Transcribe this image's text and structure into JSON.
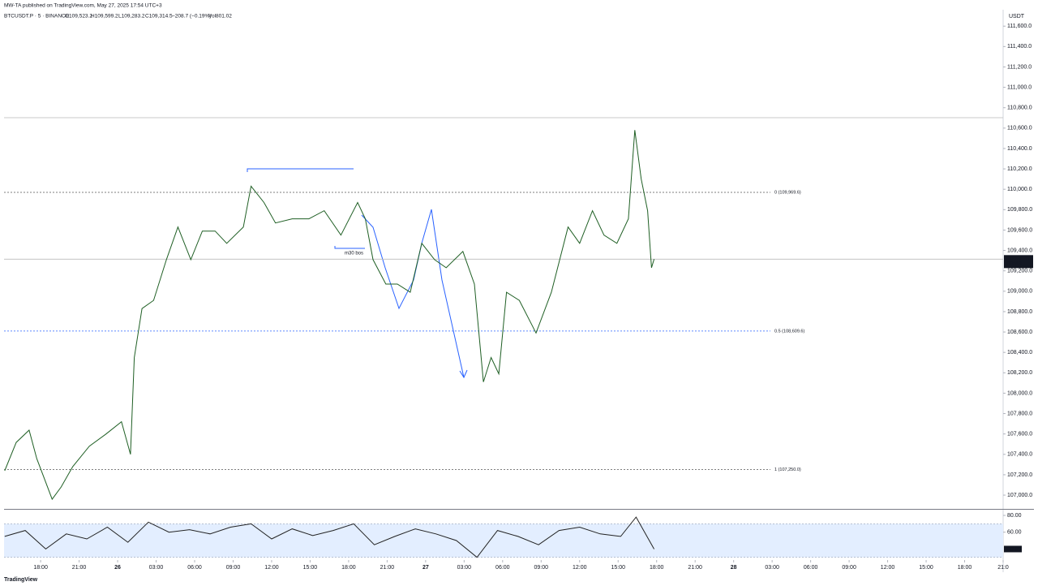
{
  "header": {
    "published": "MW-TA published on TradingView.com, May 27, 2025 17:54 UTC+3",
    "symbol": "BTCUSDT.P · 5 · BINANCE",
    "open": "O109,523.2",
    "high": "H109,599.2",
    "low": "L109,283.2",
    "close": "C109,314.5",
    "change": "−208.7 (−0.19%)",
    "volume": "Vol801.02"
  },
  "footer_brand": "TradingView",
  "chart_data": [
    {
      "type": "line",
      "currency": "USDT",
      "color": "#1f5f24",
      "x": [
        -2.8,
        -1.9,
        -0.9,
        -0.3,
        0.3,
        0.9,
        1.6,
        2.5,
        3.8,
        5.1,
        6.3,
        7.0,
        7.3,
        7.9,
        8.8,
        9.8,
        10.7,
        11.7,
        12.6,
        13.6,
        14.5,
        15.8,
        16.4,
        17.4,
        18.3,
        19.6,
        20.9,
        22.1,
        23.4,
        24.7,
        25.3,
        25.9,
        26.9,
        27.8,
        28.8,
        29.7,
        30.7,
        31.6,
        32.9,
        33.8,
        34.5,
        35.1,
        35.7,
        36.3,
        37.3,
        38.6,
        39.8,
        41.1,
        42.0,
        43.0,
        43.9,
        44.9,
        45.8,
        46.3,
        46.8,
        47.3,
        47.6,
        47.8
      ],
      "values": [
        107239,
        107517,
        107637,
        107357,
        107160,
        106960,
        107080,
        107280,
        107480,
        107600,
        107720,
        107400,
        108350,
        108830,
        108910,
        109310,
        109630,
        109310,
        109590,
        109590,
        109470,
        109630,
        110030,
        109870,
        109670,
        109710,
        109710,
        109790,
        109550,
        109870,
        109710,
        109310,
        109070,
        109070,
        108990,
        109470,
        109310,
        109230,
        109390,
        109070,
        108110,
        108350,
        108190,
        108990,
        108910,
        108590,
        108990,
        109630,
        109470,
        109790,
        109550,
        109470,
        109710,
        110580,
        110100,
        109790,
        109230,
        109314.5
      ],
      "xlim": [
        -2.85,
        75
      ],
      "ylim": [
        106865,
        111745
      ],
      "xticks": [
        {
          "value": 0,
          "label": "18:00"
        },
        {
          "value": 3,
          "label": "21:00"
        },
        {
          "value": 6,
          "label": "26"
        },
        {
          "value": 9,
          "label": "03:00"
        },
        {
          "value": 12,
          "label": "06:00"
        },
        {
          "value": 15,
          "label": "09:00"
        },
        {
          "value": 18,
          "label": "12:00"
        },
        {
          "value": 21,
          "label": "15:00"
        },
        {
          "value": 24,
          "label": "18:00"
        },
        {
          "value": 27,
          "label": "21:00"
        },
        {
          "value": 30,
          "label": "27"
        },
        {
          "value": 33,
          "label": "03:00"
        },
        {
          "value": 36,
          "label": "06:00"
        },
        {
          "value": 39,
          "label": "09:00"
        },
        {
          "value": 42,
          "label": "12:00"
        },
        {
          "value": 45,
          "label": "15:00"
        },
        {
          "value": 48,
          "label": "18:00"
        },
        {
          "value": 51,
          "label": "21:00"
        },
        {
          "value": 54,
          "label": "28"
        },
        {
          "value": 57,
          "label": "03:00"
        },
        {
          "value": 60,
          "label": "06:00"
        },
        {
          "value": 63,
          "label": "09:00"
        },
        {
          "value": 66,
          "label": "12:00"
        },
        {
          "value": 69,
          "label": "15:00"
        },
        {
          "value": 72,
          "label": "18:00"
        },
        {
          "value": 75,
          "label": "21:0"
        }
      ],
      "yticks": [
        {
          "value": 107000,
          "label": "107,000.0"
        },
        {
          "value": 107200,
          "label": "107,200.0"
        },
        {
          "value": 107400,
          "label": "107,400.0"
        },
        {
          "value": 107600,
          "label": "107,600.0"
        },
        {
          "value": 107800,
          "label": "107,800.0"
        },
        {
          "value": 108000,
          "label": "108,000.0"
        },
        {
          "value": 108200,
          "label": "108,200.0"
        },
        {
          "value": 108400,
          "label": "108,400.0"
        },
        {
          "value": 108600,
          "label": "108,600.0"
        },
        {
          "value": 108800,
          "label": "108,800.0"
        },
        {
          "value": 109000,
          "label": "109,000.0"
        },
        {
          "value": 109200,
          "label": "109,200.0"
        },
        {
          "value": 109400,
          "label": "109,400.0"
        },
        {
          "value": 109600,
          "label": "109,600.0"
        },
        {
          "value": 109800,
          "label": "109,800.0"
        },
        {
          "value": 110000,
          "label": "110,000.0"
        },
        {
          "value": 110200,
          "label": "110,200.0"
        },
        {
          "value": 110400,
          "label": "110,400.0"
        },
        {
          "value": 110600,
          "label": "110,600.0"
        },
        {
          "value": 110800,
          "label": "110,800.0"
        },
        {
          "value": 111000,
          "label": "111,000.0"
        },
        {
          "value": 111200,
          "label": "111,200.0"
        },
        {
          "value": 111400,
          "label": "111,400.0"
        },
        {
          "value": 111600,
          "label": "111,600.0"
        }
      ],
      "levels": [
        {
          "value": 109969.6,
          "label": "0 (109,969.6)",
          "color": "#555555"
        },
        {
          "value": 108609.6,
          "label": "0.5 (108,609.6)",
          "color": "#2962ff"
        },
        {
          "value": 107250.0,
          "label": "1 (107,250.0)",
          "color": "#555555"
        }
      ],
      "last_price": {
        "value": 109314.5,
        "label": "109,314.5"
      },
      "countdown": "00:43",
      "annotation": "m30 bos"
    },
    {
      "type": "rsi",
      "color": "#222222",
      "x": [
        -2.8,
        -1.2,
        0.4,
        2.0,
        3.6,
        5.2,
        6.8,
        8.4,
        10.0,
        11.6,
        13.2,
        14.8,
        16.4,
        18.0,
        19.6,
        21.2,
        22.8,
        24.4,
        26.0,
        27.6,
        29.2,
        30.8,
        32.4,
        34.0,
        35.6,
        37.2,
        38.8,
        40.4,
        42.0,
        43.6,
        45.2,
        46.4,
        47.8
      ],
      "values": [
        55,
        62,
        40,
        58,
        52,
        66,
        48,
        72,
        60,
        63,
        58,
        66,
        70,
        52,
        64,
        56,
        62,
        70,
        45,
        55,
        64,
        58,
        50,
        30,
        62,
        55,
        45,
        62,
        66,
        58,
        55,
        78,
        39.9
      ],
      "value_labels": [
        null,
        null,
        null,
        null,
        null,
        null,
        null,
        null,
        null,
        null,
        null,
        null,
        null,
        null,
        null,
        null,
        null,
        null,
        null,
        null,
        null,
        null,
        null,
        null,
        null,
        null,
        null,
        null,
        null,
        null,
        null,
        null,
        "39.90"
      ],
      "band": [
        30,
        70
      ],
      "xlim": [
        -2.85,
        75
      ],
      "ylim": [
        26.8,
        86.8
      ],
      "yticks": [
        {
          "value": 80,
          "label": "80.00"
        },
        {
          "value": 60,
          "label": "60.00"
        }
      ]
    }
  ]
}
